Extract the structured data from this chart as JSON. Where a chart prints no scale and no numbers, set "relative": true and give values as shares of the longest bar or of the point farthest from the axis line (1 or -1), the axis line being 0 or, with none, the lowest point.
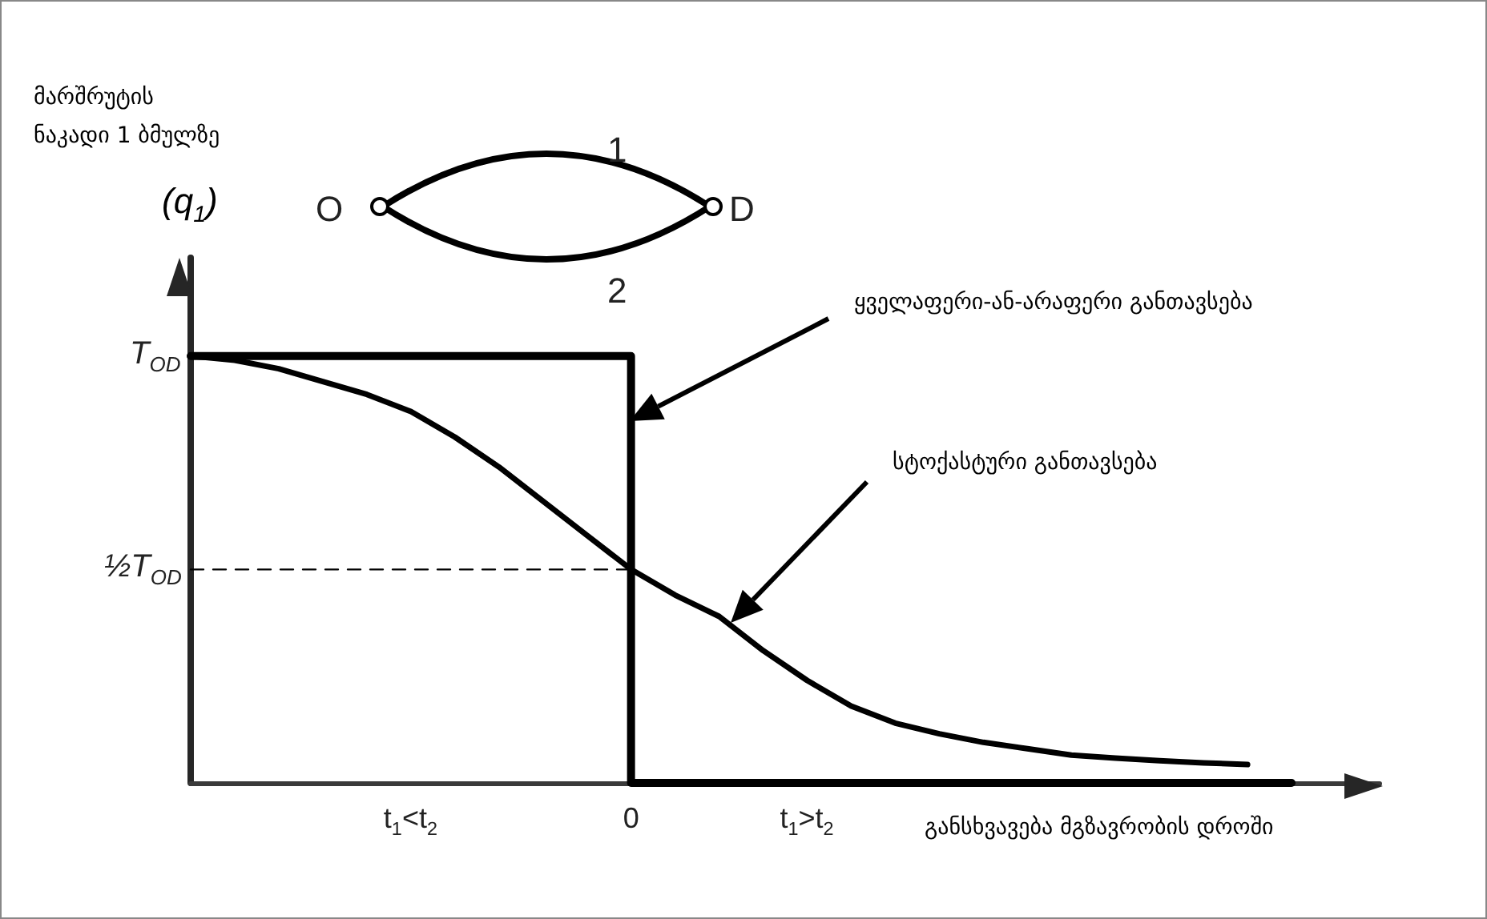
{
  "chart_data": {
    "type": "line",
    "ylabel": "მარშრუტის ნაკადი 1 ბმულზე (q$_{1}$)",
    "relative": true,
    "xlabel": "განსხვავება მგზავრობის დროში",
    "categories": [
      null,
      null,
      null,
      null,
      null,
      "t$_{1}$<t$_{2}$",
      null,
      null,
      null,
      null,
      "0",
      null,
      null,
      null,
      "t$_{1}$>t$_{2}$",
      null,
      null,
      null,
      null,
      null,
      null,
      null,
      null,
      null,
      null,
      null,
      null,
      null
    ],
    "grid": false,
    "marker": "none",
    "series": [
      {
        "color": "#000000",
        "line_style": "dashed",
        "values": [
          0.5,
          0.5,
          0.5,
          0.5,
          0.5,
          0.5,
          0.5,
          0.5,
          0.5,
          0.5,
          0.5,
          null,
          null,
          null,
          null,
          null,
          null,
          null,
          null,
          null,
          null,
          null,
          null,
          null,
          null,
          null,
          null,
          null
        ]
      },
      {
        "type": "step",
        "color": "#000000",
        "line_style": "solid",
        "values": [
          1,
          1,
          1,
          1,
          1,
          1,
          1,
          1,
          1,
          1,
          0,
          0,
          0,
          0,
          0,
          0,
          0,
          0,
          0,
          0,
          0,
          0,
          0,
          0,
          0,
          0,
          null,
          null
        ]
      },
      {
        "color": "#000000",
        "line_style": "solid",
        "values": [
          1,
          0.99,
          0.97,
          0.94,
          0.91,
          0.87,
          0.81,
          0.74,
          0.66,
          0.58,
          0.5,
          0.44,
          0.39,
          0.31,
          0.24,
          0.18,
          0.14,
          0.115,
          0.095,
          0.08,
          0.065,
          0.058,
          0.052,
          0.047,
          0.043,
          null,
          null,
          null
        ]
      }
    ],
    "annotations": [
      "ყველაფერი-ან-არაფერი განთავსება",
      "სტოქასტური განთავსება",
      "O",
      "D",
      "1",
      "2",
      "½T$_{OD}$",
      "T$_{OD}$"
    ]
  }
}
